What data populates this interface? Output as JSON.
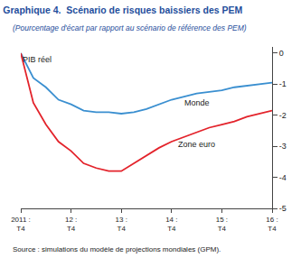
{
  "chart_data": {
    "type": "line",
    "title": "Graphique 4.  Scénario de risques baissiers des PEM",
    "subtitle": "(Pourcentage d'écart par rapport au scénario de référence des PEM)",
    "source": "Source : simulations du modèle de projections mondiales (GPM).",
    "categories": [
      "2011 : T4",
      null,
      null,
      null,
      "12 : T4",
      null,
      null,
      null,
      "13 : T4",
      null,
      null,
      null,
      "14 : T4",
      null,
      null,
      null,
      "15 : T4",
      null,
      null,
      null,
      "16 : T4"
    ],
    "series": [
      {
        "name": "Monde",
        "color": "#3a8fd0",
        "values": [
          0,
          -0.8,
          -1.1,
          -1.5,
          -1.65,
          -1.85,
          -1.9,
          -1.9,
          -1.95,
          -1.9,
          -1.8,
          -1.65,
          -1.5,
          -1.4,
          -1.3,
          -1.25,
          -1.2,
          -1.1,
          -1.05,
          -1.0,
          -0.95
        ]
      },
      {
        "name": "Zone euro",
        "color": "#e3232b",
        "values": [
          0,
          -1.6,
          -2.3,
          -2.85,
          -3.15,
          -3.55,
          -3.7,
          -3.8,
          -3.8,
          -3.55,
          -3.3,
          -3.05,
          -2.85,
          -2.7,
          -2.55,
          -2.4,
          -2.3,
          -2.2,
          -2.05,
          -1.95,
          -1.85
        ]
      }
    ],
    "annotations": [
      {
        "text": "PIB réel",
        "x": 0,
        "y": -0.2
      },
      {
        "text": "Monde",
        "x": 14,
        "y": -1.6
      },
      {
        "text": "Zone euro",
        "x": 14,
        "y": -2.95
      }
    ],
    "ylim": [
      -5,
      0.2
    ],
    "yticks": [
      0,
      -1,
      -2,
      -3,
      -4,
      -5
    ],
    "grid": false
  }
}
